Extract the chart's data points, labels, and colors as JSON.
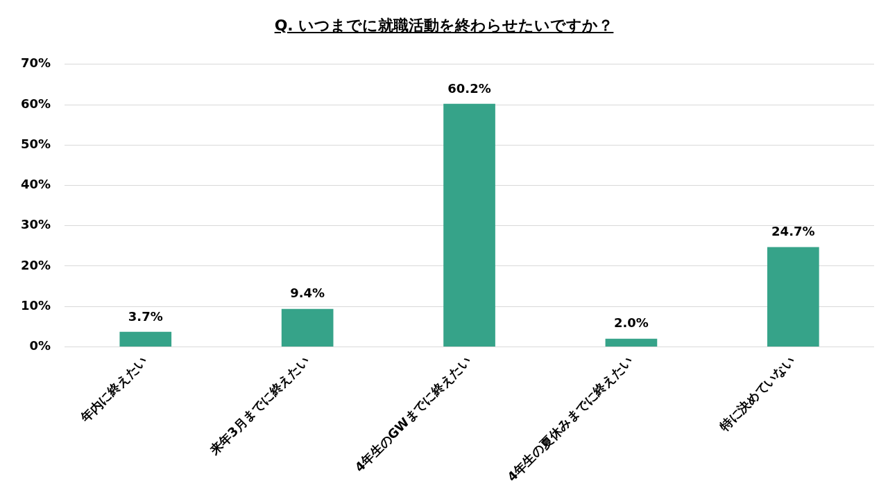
{
  "chart_data": {
    "type": "bar",
    "title": "Q. いつまでに就職活動を終わらせたいですか？",
    "categories": [
      "年内に終えたい",
      "来年3月までに終えたい",
      "4年生のGWまでに終えたい",
      "4年生の夏休みまでに終えたい",
      "特に決めていない"
    ],
    "values": [
      3.7,
      9.4,
      60.2,
      2.0,
      24.7
    ],
    "value_labels": [
      "3.7%",
      "9.4%",
      "60.2%",
      "2.0%",
      "24.7%"
    ],
    "color": "#36a389",
    "ylim": [
      0,
      70
    ],
    "yticks": [
      {
        "value": 0,
        "label": "0%"
      },
      {
        "value": 10,
        "label": "10%"
      },
      {
        "value": 20,
        "label": "20%"
      },
      {
        "value": 30,
        "label": "30%"
      },
      {
        "value": 40,
        "label": "40%"
      },
      {
        "value": 50,
        "label": "50%"
      },
      {
        "value": 60,
        "label": "60%"
      },
      {
        "value": 70,
        "label": "70%"
      }
    ],
    "grid": "y",
    "legend": false
  }
}
